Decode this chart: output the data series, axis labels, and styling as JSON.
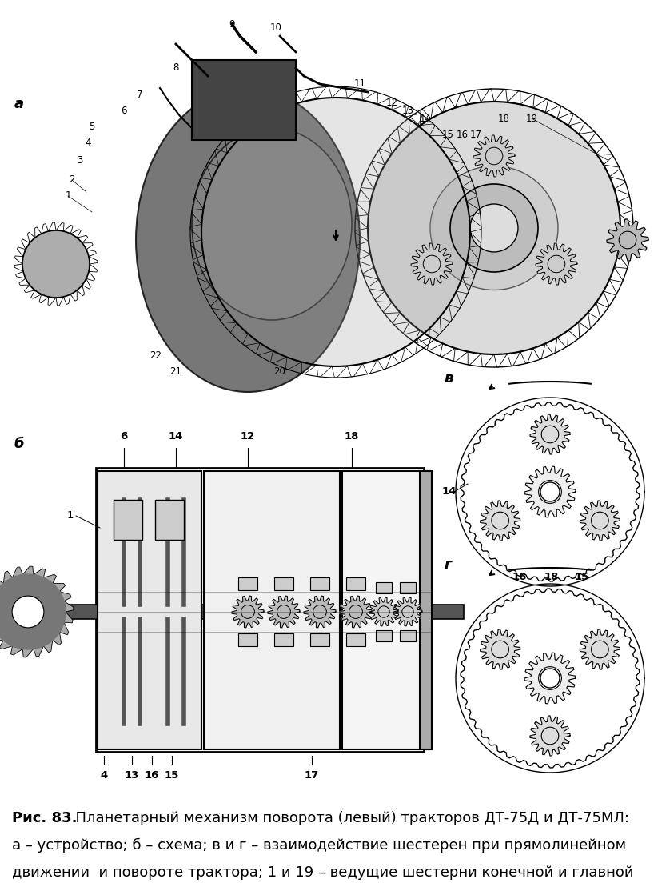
{
  "background_color": "#ffffff",
  "figsize": [
    8.18,
    11.14
  ],
  "dpi": 100,
  "caption_line1_bold": "Рис. 83.",
  "caption_line1_rest": "  Планетарный механизм поворота (левый) тракторов ДТ-75Д и ДТ-75МЛ:",
  "caption_line2": "а – устройство; б – схема; в и г – взаимодействие шестерен при прямолинейном",
  "caption_line3": "движении  и повороте трактора; 1 и 19 – ведущие шестерни конечной и главной",
  "label_a": "а",
  "label_b": "б",
  "label_v": "в",
  "label_g": "г"
}
